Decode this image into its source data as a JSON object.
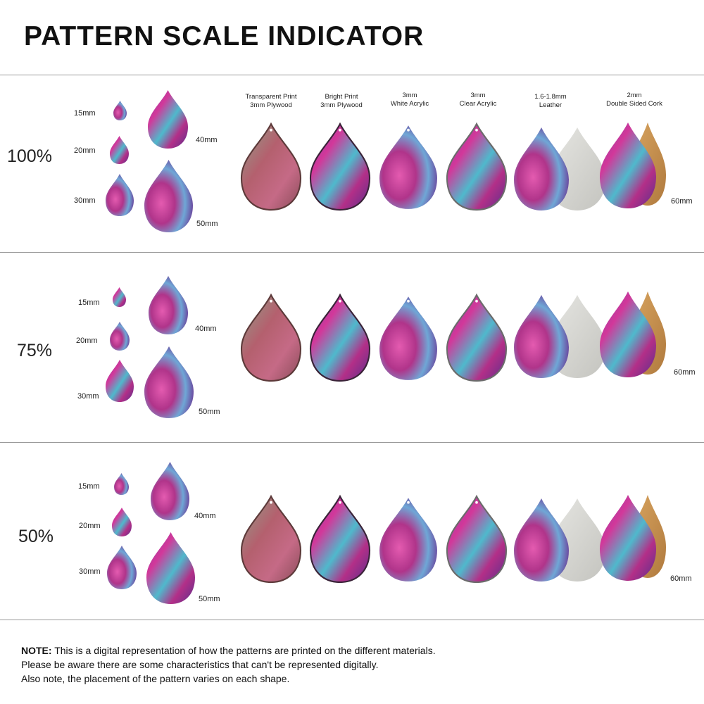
{
  "title": "PATTERN SCALE INDICATOR",
  "materials": [
    {
      "line1": "Transparent Print",
      "line2": "3mm Plywood"
    },
    {
      "line1": "Bright Print",
      "line2": "3mm Plywood"
    },
    {
      "line1": "3mm",
      "line2": "White Acrylic"
    },
    {
      "line1": "3mm",
      "line2": "Clear Acrylic"
    },
    {
      "line1": "1.6-1.8mm",
      "line2": "Leather"
    },
    {
      "line1": "2mm",
      "line2": "Double Sided Cork"
    }
  ],
  "sections": [
    {
      "scale": "100%",
      "sizes": {
        "s15": "15mm",
        "s20": "20mm",
        "s30": "30mm",
        "s40": "40mm",
        "s50": "50mm",
        "s60": "60mm"
      }
    },
    {
      "scale": "75%",
      "sizes": {
        "s15": "15mm",
        "s20": "20mm",
        "s30": "30mm",
        "s40": "40mm",
        "s50": "50mm",
        "s60": "60mm"
      }
    },
    {
      "scale": "50%",
      "sizes": {
        "s15": "15mm",
        "s20": "20mm",
        "s30": "30mm",
        "s40": "40mm",
        "s50": "50mm",
        "s60": "60mm"
      }
    }
  ],
  "note": {
    "label": "NOTE:",
    "line1": " This is a digital representation of how the patterns are printed on the different materials.",
    "line2": "Please be aware there are some characteristics that can't be represented digitally.",
    "line3": "Also note, the placement of the pattern varies on each shape."
  },
  "colors": {
    "magenta": "#c0307f",
    "purple": "#6a3a9a",
    "teal": "#3fb8c8",
    "rose": "#a85a6a",
    "leather": "#d4d4d0",
    "cork": "#c8904e"
  }
}
